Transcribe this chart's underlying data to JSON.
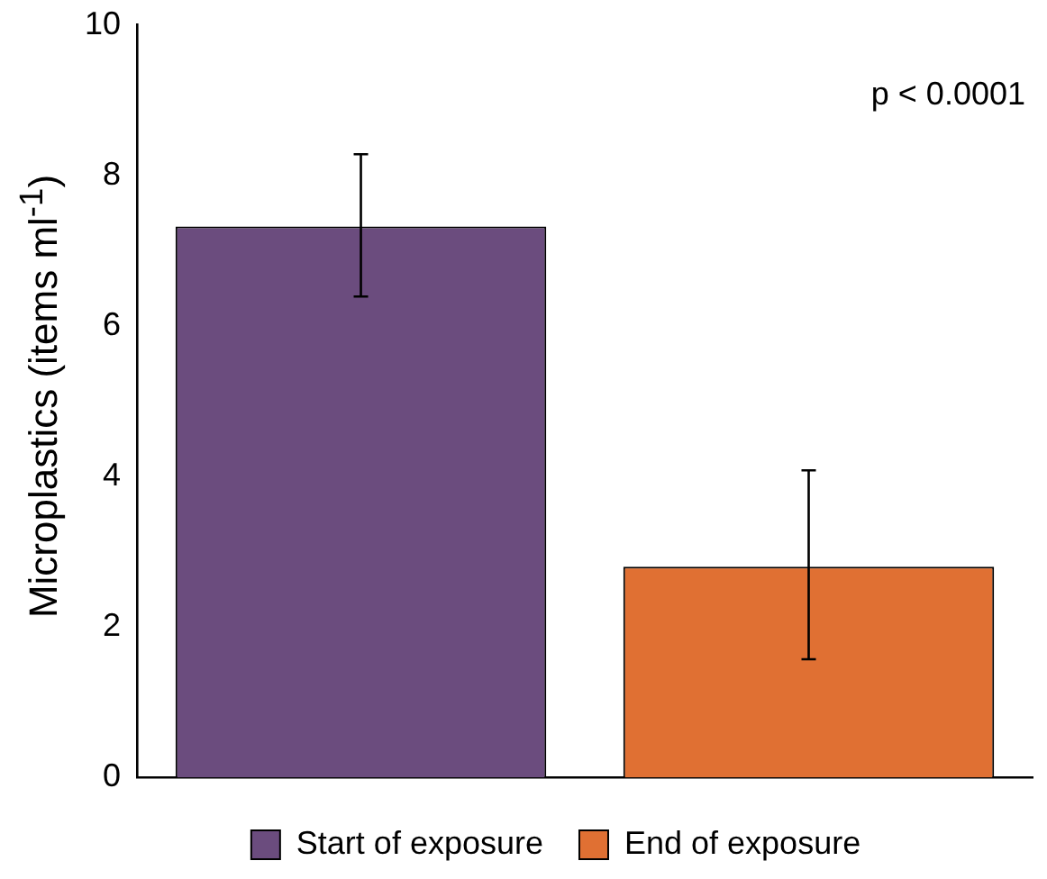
{
  "chart_data": {
    "type": "bar",
    "ylabel": "Microplastics (items ml$^{-1}$)",
    "annotations": [
      "p < 0.0001"
    ],
    "categories": [
      null,
      null
    ],
    "series": [
      {
        "name": "Start of exposure",
        "color": "#6b4c7e",
        "values": [
          7.32,
          null
        ],
        "errors": [
          [
            6.39,
            8.28
          ],
          null
        ]
      },
      {
        "name": "End of exposure",
        "color": "#e07033",
        "values": [
          null,
          2.8
        ],
        "errors": [
          null,
          [
            1.57,
            4.08
          ]
        ]
      }
    ],
    "ylim": [
      0,
      10
    ],
    "yticks": [
      0,
      2,
      4,
      6,
      8,
      10
    ],
    "grid": false,
    "legend": "bottom"
  }
}
